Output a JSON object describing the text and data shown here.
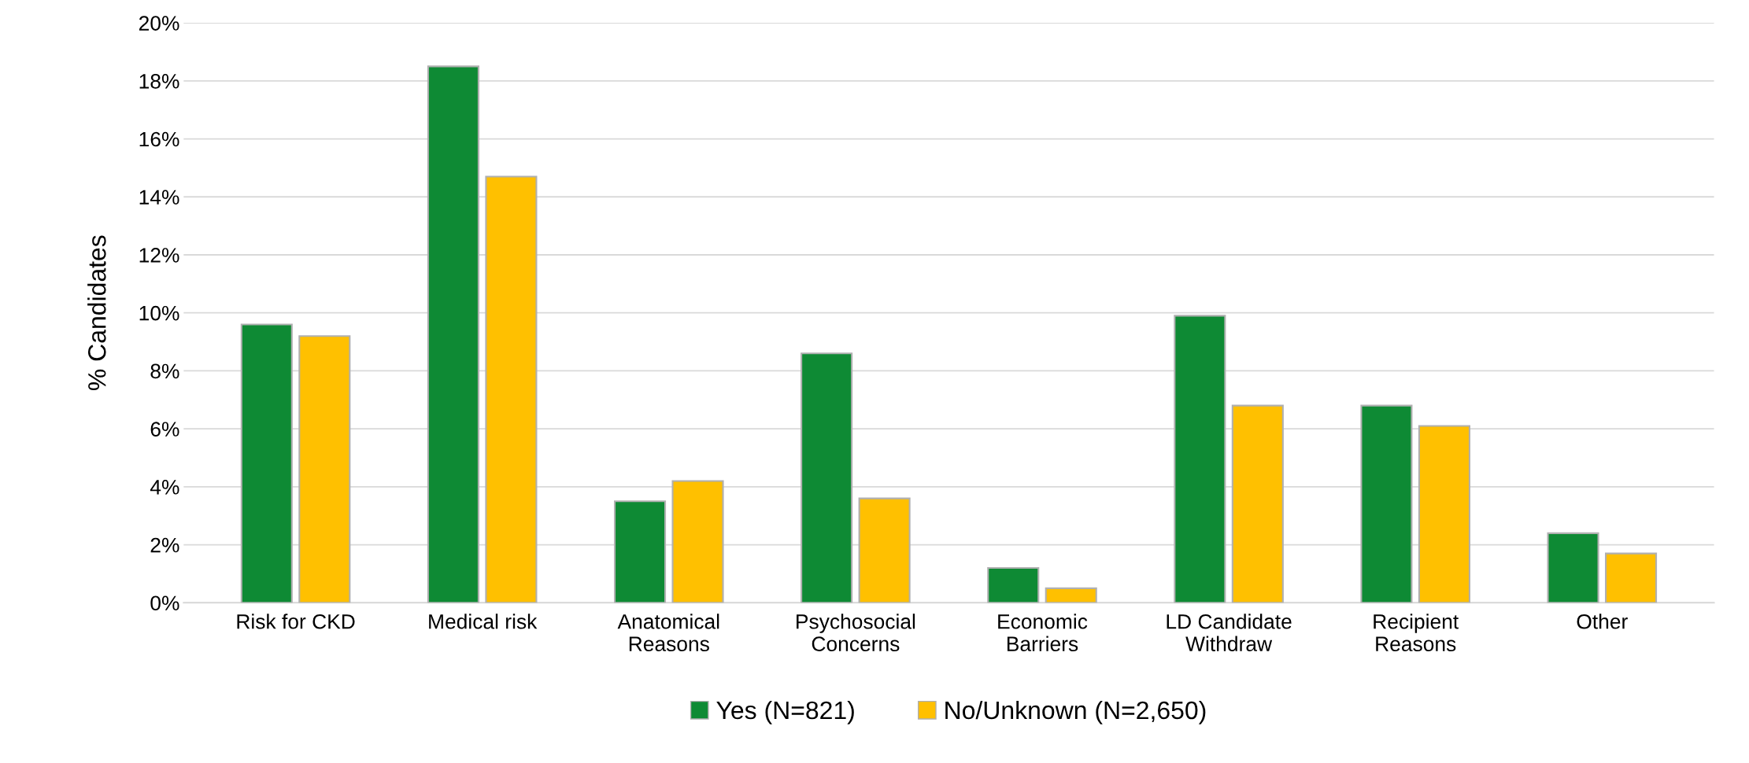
{
  "chart_data": {
    "type": "bar",
    "ylabel": "% Candidates",
    "categories": [
      "Risk for CKD",
      "Medical risk",
      "Anatomical\nReasons",
      "Psychosocial\nConcerns",
      "Economic\nBarriers",
      "LD Candidate\nWithdraw",
      "Recipient\nReasons",
      "Other"
    ],
    "series": [
      {
        "name": "Yes (N=821)",
        "color": "#0e8a34",
        "values": [
          9.6,
          18.5,
          3.5,
          8.6,
          1.2,
          9.9,
          6.8,
          2.4
        ]
      },
      {
        "name": "No/Unknown (N=2,650)",
        "color": "#ffc000",
        "values": [
          9.2,
          14.7,
          4.2,
          3.6,
          0.5,
          6.8,
          6.1,
          1.7
        ]
      }
    ],
    "ylim": [
      0,
      20
    ],
    "yticks": [
      {
        "value": 0,
        "label": "0%"
      },
      {
        "value": 2,
        "label": "2%"
      },
      {
        "value": 4,
        "label": "4%"
      },
      {
        "value": 6,
        "label": "6%"
      },
      {
        "value": 8,
        "label": "8%"
      },
      {
        "value": 10,
        "label": "10%"
      },
      {
        "value": 12,
        "label": "12%"
      },
      {
        "value": 14,
        "label": "14%"
      },
      {
        "value": 16,
        "label": "16%"
      },
      {
        "value": 18,
        "label": "18%"
      },
      {
        "value": 20,
        "label": "20%"
      }
    ],
    "grid": "y",
    "legend": "bottom"
  }
}
